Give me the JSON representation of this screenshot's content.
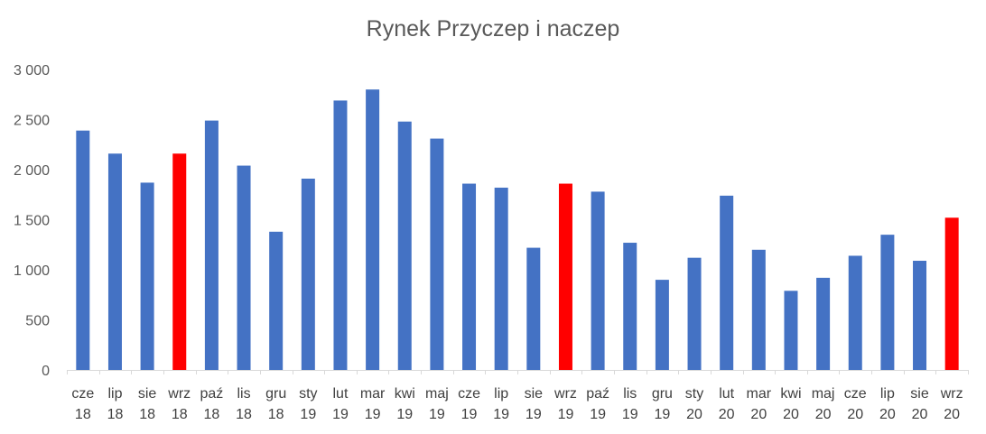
{
  "chart_data": {
    "type": "bar",
    "title": "Rynek Przyczep i naczep",
    "xlabel": "",
    "ylabel": "",
    "ylim": [
      0,
      3000
    ],
    "yticks": [
      0,
      500,
      1000,
      1500,
      2000,
      2500,
      3000
    ],
    "ytick_labels": [
      "0",
      "500",
      "1 000",
      "1 500",
      "2 000",
      "2 500",
      "3 000"
    ],
    "grid": false,
    "colors": {
      "default": "#4472C4",
      "highlight": "#FF0000",
      "axis": "#D9D9D9"
    },
    "categories": [
      [
        "cze",
        "18"
      ],
      [
        "lip",
        "18"
      ],
      [
        "sie",
        "18"
      ],
      [
        "wrz",
        "18"
      ],
      [
        "paź",
        "18"
      ],
      [
        "lis",
        "18"
      ],
      [
        "gru",
        "18"
      ],
      [
        "sty",
        "19"
      ],
      [
        "lut",
        "19"
      ],
      [
        "mar",
        "19"
      ],
      [
        "kwi",
        "19"
      ],
      [
        "maj",
        "19"
      ],
      [
        "cze",
        "19"
      ],
      [
        "lip",
        "19"
      ],
      [
        "sie",
        "19"
      ],
      [
        "wrz",
        "19"
      ],
      [
        "paź",
        "19"
      ],
      [
        "lis",
        "19"
      ],
      [
        "gru",
        "19"
      ],
      [
        "sty",
        "20"
      ],
      [
        "lut",
        "20"
      ],
      [
        "mar",
        "20"
      ],
      [
        "kwi",
        "20"
      ],
      [
        "maj",
        "20"
      ],
      [
        "cze",
        "20"
      ],
      [
        "lip",
        "20"
      ],
      [
        "sie",
        "20"
      ],
      [
        "wrz",
        "20"
      ]
    ],
    "values": [
      2390,
      2160,
      1870,
      2160,
      2490,
      2040,
      1380,
      1910,
      2690,
      2800,
      2480,
      2310,
      1860,
      1820,
      1220,
      1860,
      1780,
      1270,
      900,
      1120,
      1740,
      1200,
      790,
      920,
      1140,
      1350,
      1090,
      1520
    ],
    "highlight": [
      false,
      false,
      false,
      true,
      false,
      false,
      false,
      false,
      false,
      false,
      false,
      false,
      false,
      false,
      false,
      true,
      false,
      false,
      false,
      false,
      false,
      false,
      false,
      false,
      false,
      false,
      false,
      true
    ]
  }
}
